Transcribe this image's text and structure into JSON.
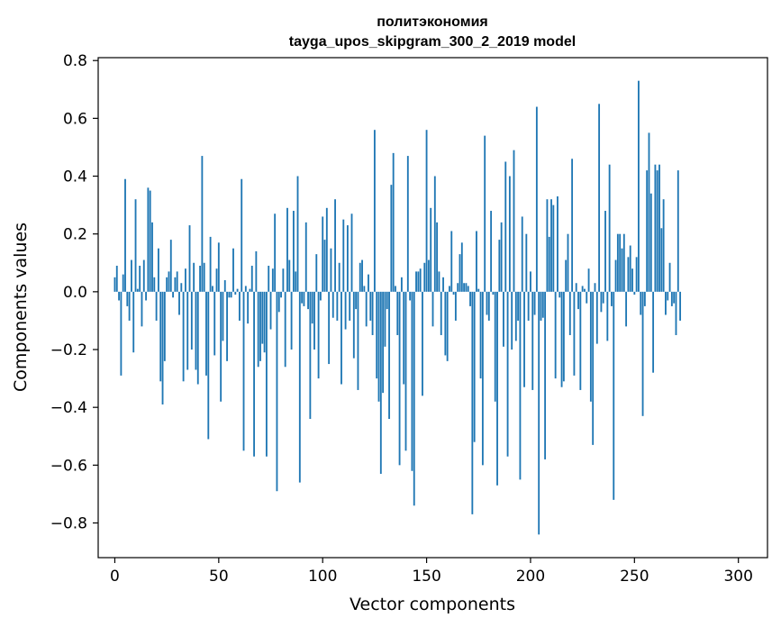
{
  "chart_data": {
    "type": "bar",
    "title": "политэкономия",
    "subtitle": "tayga_upos_skipgram_300_2_2019 model",
    "xlabel": "Vector components",
    "ylabel": "Components values",
    "xlim": [
      -8,
      314
    ],
    "ylim": [
      -0.92,
      0.81
    ],
    "x_ticks": [
      0,
      50,
      100,
      150,
      200,
      250,
      300
    ],
    "x_tick_labels": [
      "0",
      "50",
      "100",
      "150",
      "200",
      "250",
      "300"
    ],
    "y_ticks": [
      -0.8,
      -0.6,
      -0.4,
      -0.2,
      0.0,
      0.2,
      0.4,
      0.6,
      0.8
    ],
    "y_tick_labels": [
      "−0.8",
      "−0.6",
      "−0.4",
      "−0.2",
      "0.0",
      "0.2",
      "0.4",
      "0.6",
      "0.8"
    ],
    "bar_color": "#1f77b4",
    "grid": false,
    "legend": "none",
    "values": [
      0.05,
      0.09,
      -0.03,
      -0.29,
      0.06,
      0.39,
      -0.05,
      -0.1,
      0.11,
      -0.21,
      0.32,
      0.01,
      0.09,
      -0.12,
      0.11,
      -0.03,
      0.36,
      0.35,
      0.24,
      0.05,
      -0.1,
      0.15,
      -0.31,
      -0.39,
      -0.24,
      0.05,
      0.07,
      0.18,
      -0.02,
      0.05,
      0.07,
      -0.08,
      0.03,
      -0.31,
      0.08,
      -0.27,
      0.23,
      -0.2,
      0.1,
      -0.27,
      -0.32,
      0.09,
      0.47,
      0.1,
      -0.29,
      -0.51,
      0.19,
      0.02,
      -0.22,
      0.08,
      0.17,
      -0.38,
      -0.17,
      0.04,
      -0.24,
      -0.02,
      -0.02,
      0.15,
      -0.01,
      0.01,
      -0.1,
      0.39,
      -0.55,
      0.02,
      -0.11,
      0.01,
      0.09,
      -0.57,
      0.14,
      -0.26,
      -0.24,
      -0.18,
      -0.21,
      -0.57,
      0.09,
      -0.13,
      0.08,
      0.27,
      -0.69,
      -0.07,
      -0.02,
      0.08,
      -0.26,
      0.29,
      0.11,
      -0.2,
      0.28,
      0.07,
      0.4,
      -0.66,
      -0.04,
      -0.05,
      0.24,
      -0.06,
      -0.44,
      -0.11,
      -0.2,
      0.13,
      -0.3,
      -0.03,
      0.26,
      0.18,
      0.29,
      -0.25,
      0.15,
      -0.09,
      0.32,
      -0.1,
      0.1,
      -0.32,
      0.25,
      -0.13,
      0.23,
      -0.1,
      0.27,
      -0.23,
      -0.06,
      -0.34,
      0.1,
      0.11,
      0.02,
      -0.12,
      0.06,
      -0.1,
      -0.15,
      0.56,
      -0.3,
      -0.38,
      -0.63,
      -0.35,
      -0.19,
      -0.06,
      -0.44,
      0.37,
      0.48,
      0.02,
      -0.15,
      -0.6,
      0.05,
      -0.32,
      -0.55,
      0.47,
      -0.03,
      -0.62,
      -0.74,
      0.07,
      0.07,
      0.08,
      -0.36,
      0.1,
      0.56,
      0.11,
      0.29,
      -0.12,
      0.4,
      0.24,
      0.07,
      -0.15,
      0.05,
      -0.22,
      -0.24,
      0.02,
      0.21,
      -0.01,
      -0.1,
      0.03,
      0.13,
      0.17,
      0.03,
      0.03,
      0.02,
      -0.05,
      -0.77,
      -0.52,
      0.21,
      0.01,
      -0.3,
      -0.6,
      0.54,
      -0.08,
      -0.1,
      0.28,
      -0.01,
      -0.38,
      -0.67,
      0.18,
      0.24,
      -0.19,
      0.45,
      -0.57,
      0.4,
      -0.2,
      0.49,
      -0.17,
      -0.1,
      -0.65,
      0.26,
      -0.33,
      0.2,
      -0.1,
      0.07,
      -0.34,
      -0.08,
      0.64,
      -0.84,
      -0.1,
      -0.09,
      -0.58,
      0.32,
      0.19,
      0.32,
      0.3,
      -0.3,
      0.33,
      -0.02,
      -0.33,
      -0.31,
      0.11,
      0.2,
      -0.15,
      0.46,
      -0.29,
      0.03,
      -0.06,
      -0.34,
      0.02,
      0.01,
      -0.04,
      0.08,
      -0.38,
      -0.53,
      0.03,
      -0.18,
      0.65,
      -0.07,
      -0.04,
      0.28,
      -0.17,
      0.44,
      -0.05,
      -0.72,
      0.11,
      0.2,
      0.2,
      0.15,
      0.2,
      -0.12,
      0.12,
      0.16,
      0.08,
      -0.01,
      0.12,
      0.73,
      -0.08,
      -0.43,
      -0.05,
      0.42,
      0.55,
      0.34,
      -0.28,
      0.44,
      0.42,
      0.44,
      0.22,
      0.32,
      -0.08,
      -0.03,
      0.1,
      -0.05,
      -0.04,
      -0.15,
      0.42,
      -0.1
    ]
  }
}
